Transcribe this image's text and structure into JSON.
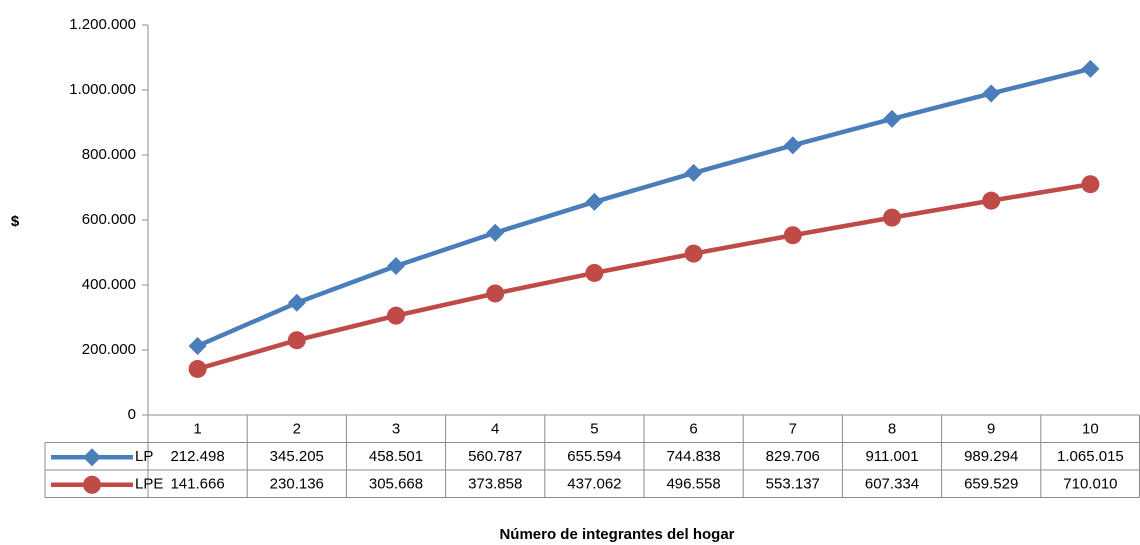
{
  "chart_data": {
    "type": "line",
    "y_label": "$",
    "x_label": "Número de integrantes del hogar",
    "categories": [
      "1",
      "2",
      "3",
      "4",
      "5",
      "6",
      "7",
      "8",
      "9",
      "10"
    ],
    "series": [
      {
        "name": "LP",
        "color": "#4a7ebb",
        "marker": "diamond",
        "values": [
          212498,
          345205,
          458501,
          560787,
          655594,
          744838,
          829706,
          911001,
          989294,
          1065015
        ],
        "value_labels": [
          "212.498",
          "345.205",
          "458.501",
          "560.787",
          "655.594",
          "744.838",
          "829.706",
          "911.001",
          "989.294",
          "1.065.015"
        ]
      },
      {
        "name": "LPE",
        "color": "#be4b48",
        "marker": "circle",
        "values": [
          141666,
          230136,
          305668,
          373858,
          437062,
          496558,
          553137,
          607334,
          659529,
          710010
        ],
        "value_labels": [
          "141.666",
          "230.136",
          "305.668",
          "373.858",
          "437.062",
          "496.558",
          "553.137",
          "607.334",
          "659.529",
          "710.010"
        ]
      }
    ],
    "ylim": [
      0,
      1200000
    ],
    "yticks": [
      0,
      {
        "value": 200000,
        "label": "200.000"
      },
      {
        "value": 400000,
        "label": "400.000"
      },
      {
        "value": 600000,
        "label": "600.000"
      },
      {
        "value": 800000,
        "label": "800.000"
      },
      {
        "value": 1000000,
        "label": "1.000.000"
      },
      {
        "value": 1200000,
        "label": "1.200.000"
      }
    ],
    "grid": false
  }
}
